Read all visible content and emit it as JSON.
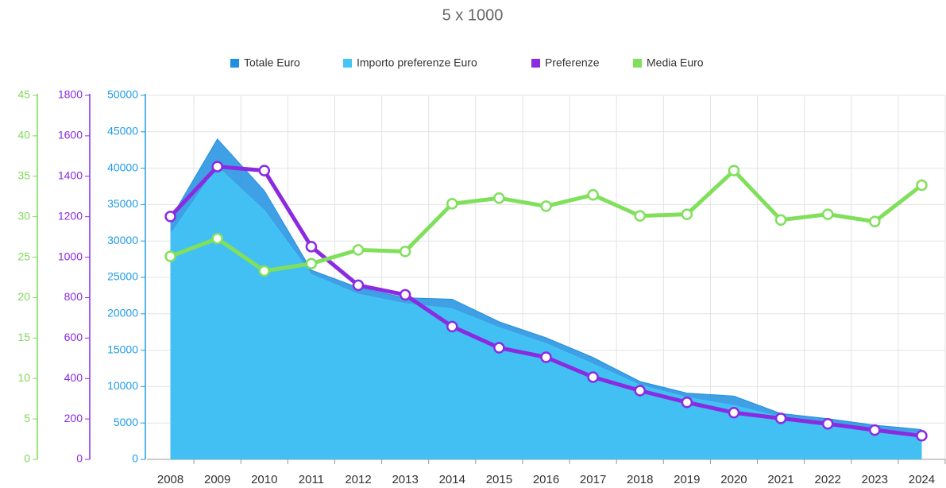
{
  "chart_data": {
    "type": "line",
    "title": "5 x 1000",
    "categories": [
      "2008",
      "2009",
      "2010",
      "2011",
      "2012",
      "2013",
      "2014",
      "2015",
      "2016",
      "2017",
      "2018",
      "2019",
      "2020",
      "2021",
      "2022",
      "2023",
      "2024"
    ],
    "series": [
      {
        "name": "Totale Euro",
        "type": "area",
        "axis": "y",
        "color": "#1e8fe1",
        "values": [
          33000,
          44000,
          36900,
          26000,
          23600,
          22200,
          22000,
          18900,
          16700,
          14000,
          10700,
          9100,
          8700,
          6300,
          5600,
          4700,
          4100
        ]
      },
      {
        "name": "Importo preferenze Euro",
        "type": "area",
        "axis": "y",
        "color": "#43c6f6",
        "values": [
          30900,
          40200,
          34200,
          25400,
          22700,
          21400,
          20700,
          18100,
          15900,
          13100,
          10200,
          8500,
          7400,
          5800,
          5000,
          4100,
          3600
        ]
      },
      {
        "name": "Preferenze",
        "type": "line",
        "axis": "y2",
        "color": "#8a2be2",
        "values": [
          1201,
          1448,
          1428,
          1052,
          861,
          814,
          657,
          552,
          505,
          407,
          340,
          282,
          231,
          203,
          176,
          145,
          117
        ]
      },
      {
        "name": "Media Euro",
        "type": "line",
        "axis": "y3",
        "color": "#80e05c",
        "values": [
          25.1,
          27.3,
          23.3,
          24.2,
          25.9,
          25.7,
          31.6,
          32.3,
          31.3,
          32.7,
          30.1,
          30.3,
          35.7,
          29.6,
          30.3,
          29.4,
          33.9
        ]
      }
    ],
    "ylim": [
      0,
      50000
    ],
    "yticks": [
      0,
      5000,
      10000,
      15000,
      20000,
      25000,
      30000,
      35000,
      40000,
      45000,
      50000
    ],
    "y2lim": [
      0,
      1800
    ],
    "y2ticks": [
      0,
      200,
      400,
      600,
      800,
      1000,
      1200,
      1400,
      1600,
      1800
    ],
    "y3lim": [
      0,
      45
    ],
    "y3ticks": [
      0,
      5,
      10,
      15,
      20,
      25,
      30,
      35,
      40,
      45
    ],
    "grid": true
  }
}
